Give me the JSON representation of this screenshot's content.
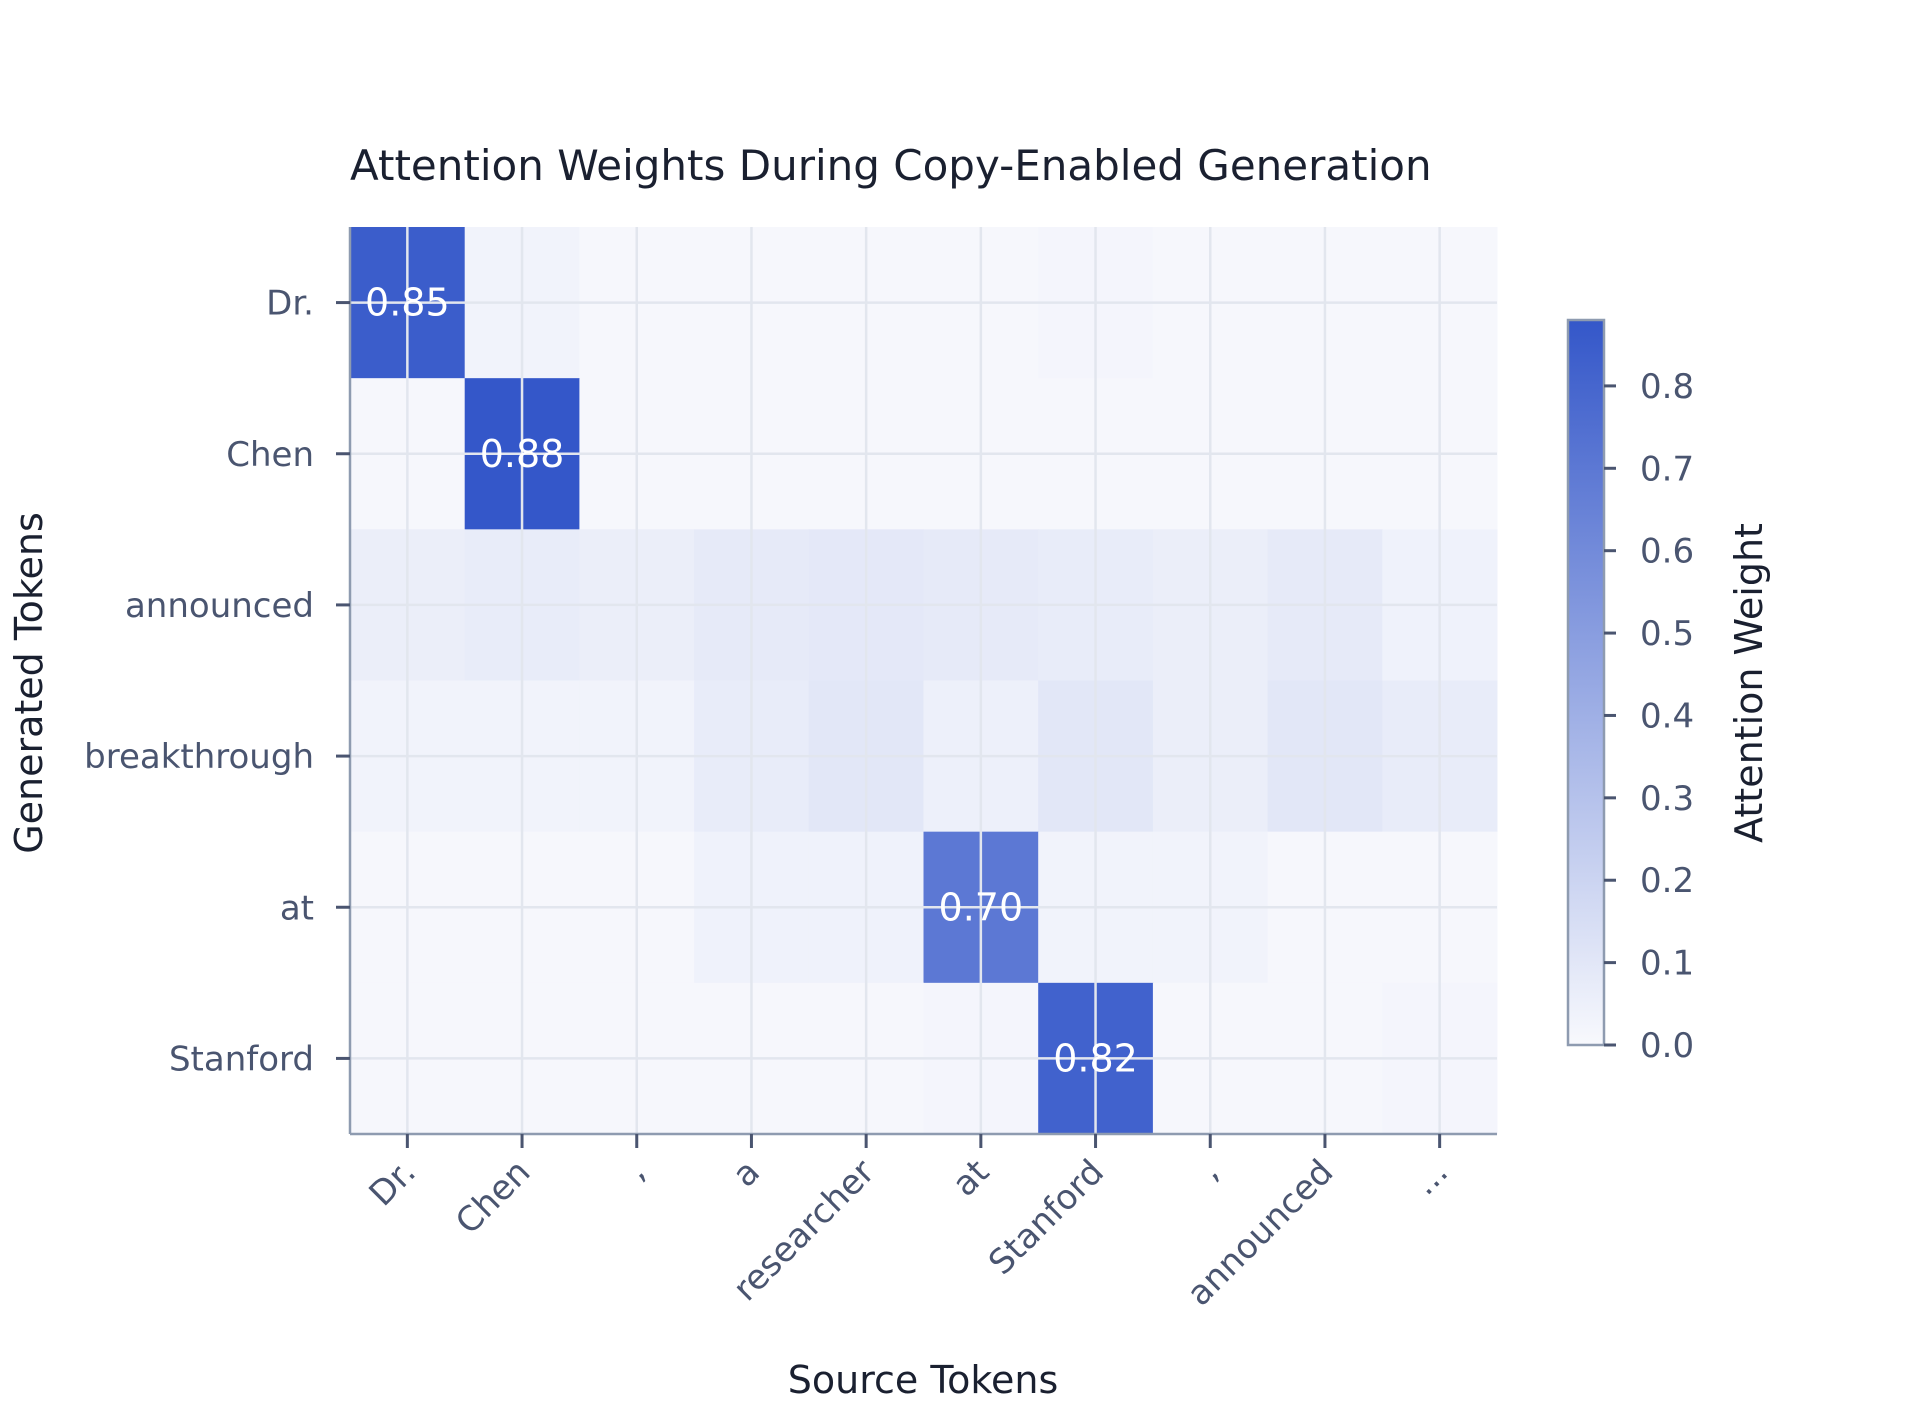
{
  "chart_data": {
    "type": "heatmap",
    "title": "Attention Weights During Copy-Enabled Generation",
    "xlabel": "Source Tokens",
    "ylabel": "Generated Tokens",
    "x_categories": [
      "Dr.",
      "Chen",
      ",",
      "a",
      "researcher",
      "at",
      "Stanford",
      ",",
      "announced",
      "..."
    ],
    "y_categories": [
      "Dr.",
      "Chen",
      "announced",
      "breakthrough",
      "at",
      "Stanford"
    ],
    "values": [
      [
        0.85,
        0.03,
        0.01,
        0.01,
        0.01,
        0.01,
        0.02,
        0.01,
        0.01,
        0.01
      ],
      [
        0.01,
        0.88,
        0.01,
        0.01,
        0.01,
        0.01,
        0.01,
        0.01,
        0.01,
        0.01
      ],
      [
        0.06,
        0.07,
        0.06,
        0.08,
        0.09,
        0.08,
        0.07,
        0.06,
        0.08,
        0.04
      ],
      [
        0.03,
        0.03,
        0.03,
        0.07,
        0.1,
        0.05,
        0.1,
        0.06,
        0.1,
        0.07
      ],
      [
        0.01,
        0.01,
        0.01,
        0.04,
        0.04,
        0.7,
        0.03,
        0.03,
        0.01,
        0.01
      ],
      [
        0.01,
        0.01,
        0.01,
        0.01,
        0.01,
        0.02,
        0.82,
        0.01,
        0.01,
        0.02
      ]
    ],
    "annotations": [
      {
        "row": 0,
        "col": 0,
        "text": "0.85"
      },
      {
        "row": 1,
        "col": 1,
        "text": "0.88"
      },
      {
        "row": 4,
        "col": 5,
        "text": "0.70"
      },
      {
        "row": 5,
        "col": 6,
        "text": "0.82"
      }
    ],
    "colorbar": {
      "label": "Attention Weight",
      "range": [
        0,
        0.88
      ],
      "ticks": [
        "0.0",
        "0.1",
        "0.2",
        "0.3",
        "0.4",
        "0.5",
        "0.6",
        "0.7",
        "0.8"
      ],
      "color_low": "#f8f9fd",
      "color_high": "#3457c9"
    },
    "grid": true,
    "colors": {
      "grid": "#e2e6ee",
      "axis": "#8e9bb0",
      "tick_text": "#4a5570",
      "title_text": "#1a2030",
      "annotation_text": "#ffffff"
    }
  }
}
